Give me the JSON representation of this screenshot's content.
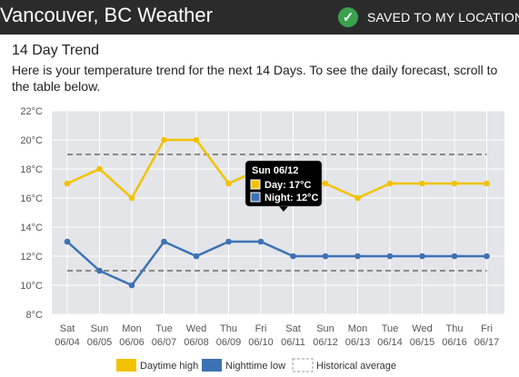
{
  "header": {
    "title": "Vancouver, BC Weather",
    "saved_label": "SAVED TO MY LOCATIONS",
    "check_icon": "check-icon"
  },
  "section": {
    "title": "14 Day Trend",
    "description": "Here is your temperature trend for the next 14 Days. To see the daily forecast, scroll to the table below."
  },
  "chart_data": {
    "type": "line",
    "x_weekdays": [
      "Sat",
      "Sun",
      "Mon",
      "Tue",
      "Wed",
      "Thu",
      "Fri",
      "Sat",
      "Sun",
      "Mon",
      "Tue",
      "Wed",
      "Thu",
      "Fri"
    ],
    "x_dates": [
      "06/04",
      "06/05",
      "06/06",
      "06/07",
      "06/08",
      "06/09",
      "06/10",
      "06/11",
      "06/12",
      "06/13",
      "06/14",
      "06/15",
      "06/16",
      "06/17"
    ],
    "y_ticks": [
      "8°C",
      "10°C",
      "12°C",
      "14°C",
      "16°C",
      "18°C",
      "20°C",
      "22°C"
    ],
    "ylim": [
      8,
      22
    ],
    "grid": true,
    "series": [
      {
        "name": "Daytime high",
        "color": "#f2c200",
        "values": [
          17,
          18,
          16,
          20,
          20,
          17,
          18,
          17,
          17,
          16,
          17,
          17,
          17,
          17
        ]
      },
      {
        "name": "Nighttime low",
        "color": "#3d72b5",
        "values": [
          13,
          11,
          10,
          13,
          12,
          13,
          13,
          12,
          12,
          12,
          12,
          12,
          12,
          12
        ]
      },
      {
        "name": "Historical average",
        "style": "dashed",
        "color": "#8a8a8a",
        "high": 19,
        "low": 11
      }
    ],
    "legend_position": "bottom",
    "tooltip": {
      "title": "Sun 06/12",
      "day": "Day: 17°C",
      "night": "Night: 12°C"
    }
  }
}
